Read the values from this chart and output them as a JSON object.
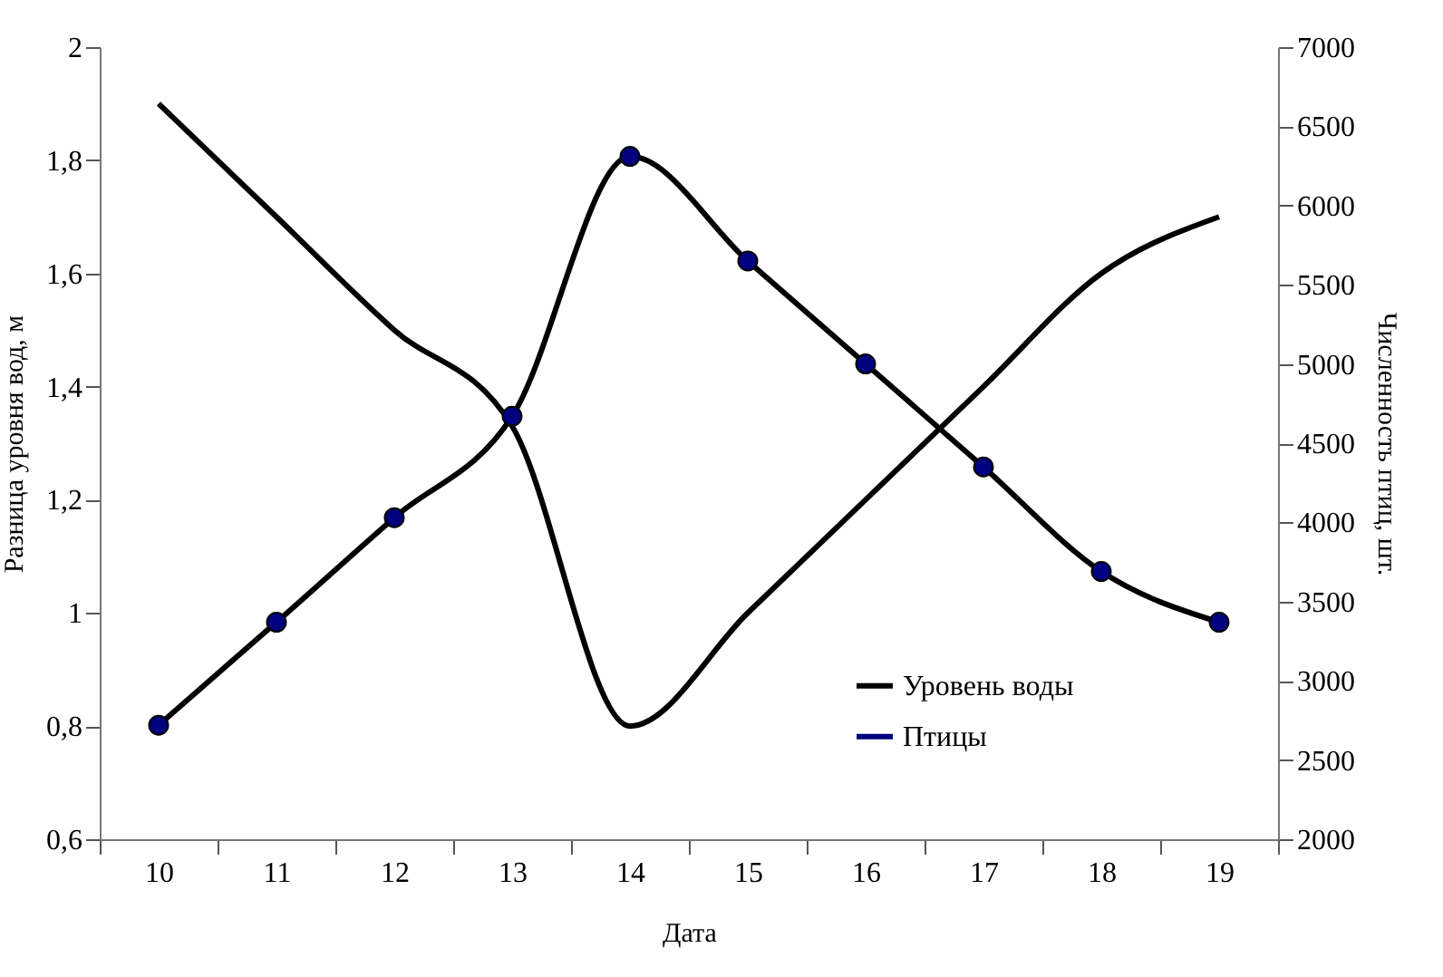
{
  "chart_data": {
    "type": "line",
    "xlabel": "Дата",
    "ylabel": "Разница уровня вод,  м",
    "y2label": "Численность птиц, шт.",
    "categories": [
      "10",
      "11",
      "12",
      "13",
      "14",
      "15",
      "16",
      "17",
      "18",
      "19"
    ],
    "series": [
      {
        "name": "Уровень воды",
        "color": "#000000",
        "values": [
          1.9,
          1.7,
          1.5,
          1.33,
          0.8,
          1.0,
          1.2,
          1.4,
          1.6,
          1.7
        ]
      },
      {
        "name": "Птицы",
        "color": "#000080",
        "axis": "y2",
        "marker": "circle",
        "values": [
          2720,
          3370,
          4030,
          4670,
          6310,
          5650,
          5000,
          4350,
          3690,
          3370
        ]
      }
    ],
    "ylim": [
      0.6,
      2
    ],
    "yticks": [
      {
        "value": 0.6,
        "label": "0,6"
      },
      {
        "value": 0.8,
        "label": "0,8"
      },
      1,
      {
        "value": 1.2,
        "label": "1,2"
      },
      {
        "value": 1.4,
        "label": "1,4"
      },
      {
        "value": 1.6,
        "label": "1,6"
      },
      {
        "value": 1.8,
        "label": "1,8"
      },
      2
    ],
    "y2lim": [
      2000,
      7000
    ],
    "y2ticks": [
      2000,
      2500,
      3000,
      3500,
      4000,
      4500,
      5000,
      5500,
      6000,
      6500,
      7000
    ],
    "legend": "bottom right",
    "line_style": "solid",
    "grid": false
  }
}
